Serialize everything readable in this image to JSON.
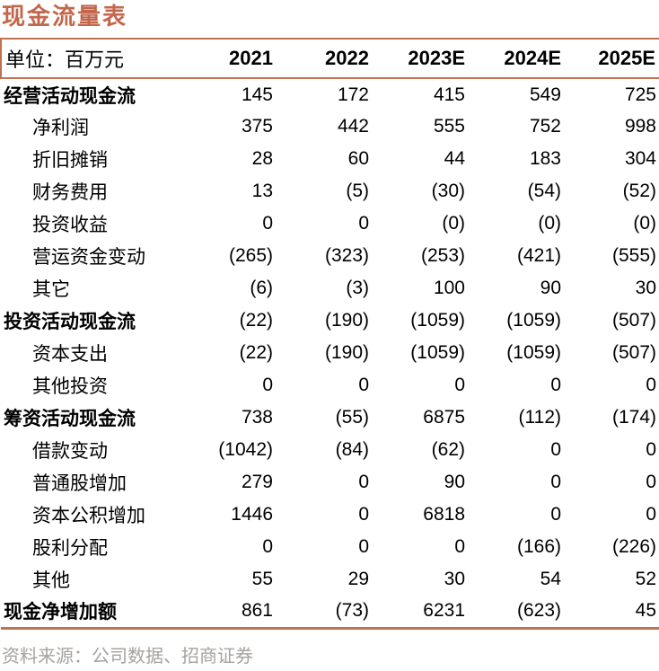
{
  "colors": {
    "accent_line": "#c1714f",
    "title": "#c2674b",
    "text": "#000000",
    "source_text": "#a6a29e"
  },
  "title": "现金流量表",
  "table": {
    "unit_label": "单位：百万元",
    "columns": [
      "2021",
      "2022",
      "2023E",
      "2024E",
      "2025E"
    ],
    "rows": [
      {
        "label": "经营活动现金流",
        "bold": true,
        "indent": false,
        "values": [
          "145",
          "172",
          "415",
          "549",
          "725"
        ]
      },
      {
        "label": "净利润",
        "bold": false,
        "indent": true,
        "values": [
          "375",
          "442",
          "555",
          "752",
          "998"
        ]
      },
      {
        "label": "折旧摊销",
        "bold": false,
        "indent": true,
        "values": [
          "28",
          "60",
          "44",
          "183",
          "304"
        ]
      },
      {
        "label": "财务费用",
        "bold": false,
        "indent": true,
        "values": [
          "13",
          "(5)",
          "(30)",
          "(54)",
          "(52)"
        ]
      },
      {
        "label": "投资收益",
        "bold": false,
        "indent": true,
        "values": [
          "0",
          "0",
          "(0)",
          "(0)",
          "(0)"
        ]
      },
      {
        "label": "营运资金变动",
        "bold": false,
        "indent": true,
        "values": [
          "(265)",
          "(323)",
          "(253)",
          "(421)",
          "(555)"
        ]
      },
      {
        "label": "其它",
        "bold": false,
        "indent": true,
        "values": [
          "(6)",
          "(3)",
          "100",
          "90",
          "30"
        ]
      },
      {
        "label": "投资活动现金流",
        "bold": true,
        "indent": false,
        "values": [
          "(22)",
          "(190)",
          "(1059)",
          "(1059)",
          "(507)"
        ]
      },
      {
        "label": "资本支出",
        "bold": false,
        "indent": true,
        "values": [
          "(22)",
          "(190)",
          "(1059)",
          "(1059)",
          "(507)"
        ]
      },
      {
        "label": "其他投资",
        "bold": false,
        "indent": true,
        "values": [
          "0",
          "0",
          "0",
          "0",
          "0"
        ]
      },
      {
        "label": "筹资活动现金流",
        "bold": true,
        "indent": false,
        "values": [
          "738",
          "(55)",
          "6875",
          "(112)",
          "(174)"
        ]
      },
      {
        "label": "借款变动",
        "bold": false,
        "indent": true,
        "values": [
          "(1042)",
          "(84)",
          "(62)",
          "0",
          "0"
        ]
      },
      {
        "label": "普通股增加",
        "bold": false,
        "indent": true,
        "values": [
          "279",
          "0",
          "90",
          "0",
          "0"
        ]
      },
      {
        "label": "资本公积增加",
        "bold": false,
        "indent": true,
        "values": [
          "1446",
          "0",
          "6818",
          "0",
          "0"
        ]
      },
      {
        "label": "股利分配",
        "bold": false,
        "indent": true,
        "values": [
          "0",
          "0",
          "0",
          "(166)",
          "(226)"
        ]
      },
      {
        "label": "其他",
        "bold": false,
        "indent": true,
        "values": [
          "55",
          "29",
          "30",
          "54",
          "52"
        ]
      },
      {
        "label": "现金净增加额",
        "bold": true,
        "indent": false,
        "values": [
          "861",
          "(73)",
          "6231",
          "(623)",
          "45"
        ]
      }
    ]
  },
  "footer": {
    "source": "资料来源：公司数据、招商证券"
  }
}
